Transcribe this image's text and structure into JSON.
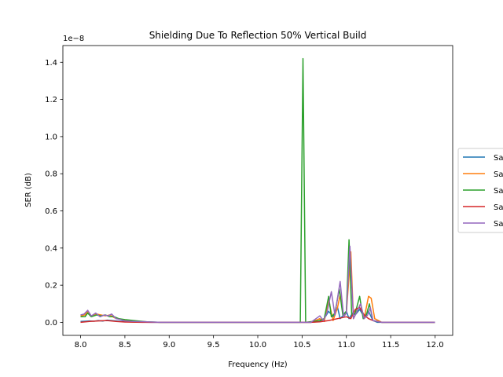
{
  "chart_data": {
    "type": "line",
    "title": "Shielding Due To Reflection 50% Vertical Build",
    "xlabel": "Frequency (Hz)",
    "ylabel": "SER (dB)",
    "offset_label": "1e−8",
    "scale": 1e-08,
    "xlim": [
      7.8,
      12.2
    ],
    "ylim": [
      -0.07,
      1.49
    ],
    "xticks": [
      8.0,
      8.5,
      9.0,
      9.5,
      10.0,
      10.5,
      11.0,
      11.5,
      12.0
    ],
    "xtick_labels": [
      "8.0",
      "8.5",
      "9.0",
      "9.5",
      "10.0",
      "10.5",
      "11.0",
      "11.5",
      "12.0"
    ],
    "yticks": [
      0.0,
      0.2,
      0.4,
      0.6,
      0.8,
      1.0,
      1.2,
      1.4
    ],
    "ytick_labels": [
      "0.0",
      "0.2",
      "0.4",
      "0.6",
      "0.8",
      "1.0",
      "1.2",
      "1.4"
    ],
    "legend_position": "right (clipped)",
    "series": [
      {
        "name": "Sa",
        "color": "#1f77b4",
        "points": [
          [
            8.0,
            0.005
          ],
          [
            8.05,
            0.006
          ],
          [
            8.1,
            0.008
          ],
          [
            8.15,
            0.006
          ],
          [
            8.2,
            0.01
          ],
          [
            8.25,
            0.007
          ],
          [
            8.3,
            0.012
          ],
          [
            8.35,
            0.01
          ],
          [
            8.4,
            0.008
          ],
          [
            8.5,
            0.004
          ],
          [
            8.6,
            0.002
          ],
          [
            8.8,
            0.0
          ],
          [
            9.5,
            0.0
          ],
          [
            10.6,
            0.0
          ],
          [
            10.7,
            0.005
          ],
          [
            10.75,
            0.02
          ],
          [
            10.8,
            0.06
          ],
          [
            10.85,
            0.03
          ],
          [
            10.9,
            0.08
          ],
          [
            10.93,
            0.02
          ],
          [
            10.97,
            0.04
          ],
          [
            11.0,
            0.06
          ],
          [
            11.03,
            0.02
          ],
          [
            11.07,
            0.05
          ],
          [
            11.1,
            0.04
          ],
          [
            11.15,
            0.07
          ],
          [
            11.2,
            0.03
          ],
          [
            11.25,
            0.06
          ],
          [
            11.3,
            0.01
          ],
          [
            11.35,
            0.0
          ],
          [
            12.0,
            0.0
          ]
        ]
      },
      {
        "name": "Sa",
        "color": "#ff7f0e",
        "points": [
          [
            8.0,
            0.035
          ],
          [
            8.05,
            0.04
          ],
          [
            8.08,
            0.06
          ],
          [
            8.12,
            0.035
          ],
          [
            8.18,
            0.045
          ],
          [
            8.23,
            0.04
          ],
          [
            8.28,
            0.035
          ],
          [
            8.33,
            0.04
          ],
          [
            8.38,
            0.025
          ],
          [
            8.43,
            0.02
          ],
          [
            8.5,
            0.01
          ],
          [
            8.6,
            0.005
          ],
          [
            8.75,
            0.002
          ],
          [
            8.9,
            0.0
          ],
          [
            10.6,
            0.0
          ],
          [
            10.7,
            0.02
          ],
          [
            10.75,
            0.005
          ],
          [
            10.8,
            0.12
          ],
          [
            10.85,
            0.01
          ],
          [
            10.9,
            0.08
          ],
          [
            10.93,
            0.15
          ],
          [
            10.97,
            0.03
          ],
          [
            11.0,
            0.05
          ],
          [
            11.05,
            0.38
          ],
          [
            11.08,
            0.02
          ],
          [
            11.12,
            0.06
          ],
          [
            11.16,
            0.1
          ],
          [
            11.2,
            0.02
          ],
          [
            11.25,
            0.14
          ],
          [
            11.28,
            0.13
          ],
          [
            11.32,
            0.02
          ],
          [
            11.4,
            0.0
          ],
          [
            12.0,
            0.0
          ]
        ]
      },
      {
        "name": "Sa",
        "color": "#2ca02c",
        "points": [
          [
            8.0,
            0.03
          ],
          [
            8.05,
            0.03
          ],
          [
            8.08,
            0.05
          ],
          [
            8.12,
            0.03
          ],
          [
            8.18,
            0.04
          ],
          [
            8.23,
            0.035
          ],
          [
            8.28,
            0.04
          ],
          [
            8.33,
            0.03
          ],
          [
            8.38,
            0.03
          ],
          [
            8.43,
            0.02
          ],
          [
            8.5,
            0.015
          ],
          [
            8.6,
            0.01
          ],
          [
            8.75,
            0.003
          ],
          [
            8.9,
            0.0
          ],
          [
            10.48,
            0.0
          ],
          [
            10.51,
            1.42
          ],
          [
            10.54,
            0.0
          ],
          [
            10.7,
            0.01
          ],
          [
            10.75,
            0.02
          ],
          [
            10.8,
            0.14
          ],
          [
            10.83,
            0.03
          ],
          [
            10.87,
            0.05
          ],
          [
            10.92,
            0.18
          ],
          [
            10.96,
            0.04
          ],
          [
            11.0,
            0.06
          ],
          [
            11.03,
            0.445
          ],
          [
            11.06,
            0.04
          ],
          [
            11.1,
            0.05
          ],
          [
            11.15,
            0.14
          ],
          [
            11.19,
            0.02
          ],
          [
            11.22,
            0.03
          ],
          [
            11.26,
            0.1
          ],
          [
            11.3,
            0.01
          ],
          [
            11.4,
            0.0
          ],
          [
            12.0,
            0.0
          ]
        ]
      },
      {
        "name": "Sa",
        "color": "#d62728",
        "points": [
          [
            8.0,
            0.0
          ],
          [
            8.1,
            0.005
          ],
          [
            8.2,
            0.008
          ],
          [
            8.3,
            0.01
          ],
          [
            8.4,
            0.005
          ],
          [
            8.5,
            0.002
          ],
          [
            8.7,
            0.0
          ],
          [
            10.6,
            0.0
          ],
          [
            10.7,
            0.003
          ],
          [
            10.8,
            0.01
          ],
          [
            10.9,
            0.02
          ],
          [
            11.0,
            0.03
          ],
          [
            11.05,
            0.02
          ],
          [
            11.1,
            0.07
          ],
          [
            11.15,
            0.08
          ],
          [
            11.2,
            0.04
          ],
          [
            11.25,
            0.02
          ],
          [
            11.3,
            0.01
          ],
          [
            11.4,
            0.0
          ],
          [
            12.0,
            0.0
          ]
        ]
      },
      {
        "name": "Sa",
        "color": "#9467bd",
        "points": [
          [
            8.0,
            0.04
          ],
          [
            8.04,
            0.045
          ],
          [
            8.08,
            0.065
          ],
          [
            8.12,
            0.035
          ],
          [
            8.17,
            0.05
          ],
          [
            8.22,
            0.03
          ],
          [
            8.27,
            0.04
          ],
          [
            8.31,
            0.035
          ],
          [
            8.35,
            0.045
          ],
          [
            8.4,
            0.02
          ],
          [
            8.45,
            0.015
          ],
          [
            8.5,
            0.008
          ],
          [
            8.6,
            0.005
          ],
          [
            8.75,
            0.003
          ],
          [
            8.9,
            0.0
          ],
          [
            10.6,
            0.0
          ],
          [
            10.7,
            0.035
          ],
          [
            10.74,
            0.01
          ],
          [
            10.78,
            0.05
          ],
          [
            10.83,
            0.165
          ],
          [
            10.87,
            0.04
          ],
          [
            10.93,
            0.22
          ],
          [
            10.97,
            0.03
          ],
          [
            11.0,
            0.05
          ],
          [
            11.04,
            0.41
          ],
          [
            11.08,
            0.02
          ],
          [
            11.12,
            0.06
          ],
          [
            11.16,
            0.1
          ],
          [
            11.2,
            0.02
          ],
          [
            11.24,
            0.04
          ],
          [
            11.27,
            0.08
          ],
          [
            11.3,
            0.01
          ],
          [
            11.4,
            0.0
          ],
          [
            12.0,
            0.0
          ]
        ]
      }
    ]
  }
}
